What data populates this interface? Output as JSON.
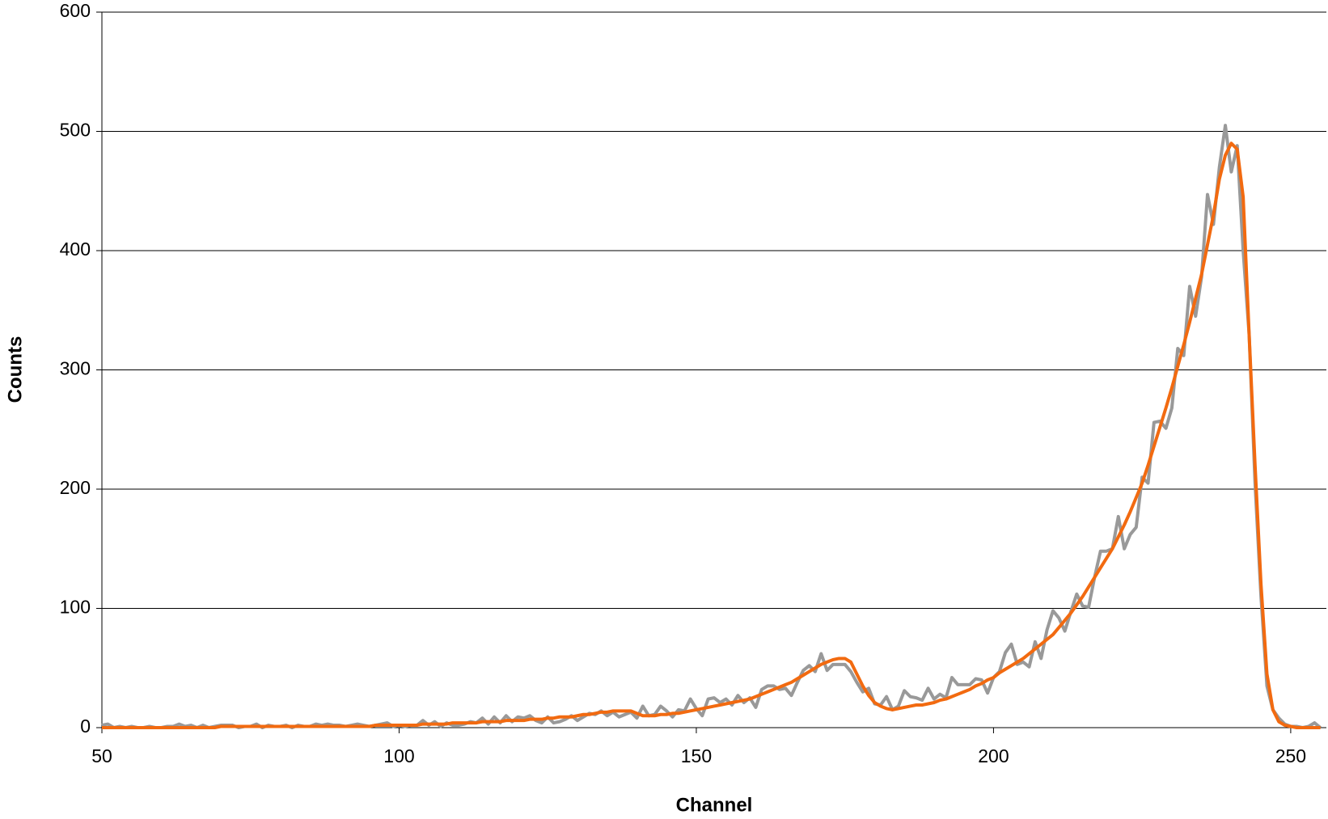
{
  "chart_data": {
    "type": "line",
    "x_label": "Channel",
    "y_label": "Counts",
    "x": [
      50,
      51,
      52,
      53,
      54,
      55,
      56,
      57,
      58,
      59,
      60,
      61,
      62,
      63,
      64,
      65,
      66,
      67,
      68,
      69,
      70,
      71,
      72,
      73,
      74,
      75,
      76,
      77,
      78,
      79,
      80,
      81,
      82,
      83,
      84,
      85,
      86,
      87,
      88,
      89,
      90,
      91,
      92,
      93,
      94,
      95,
      96,
      97,
      98,
      99,
      100,
      101,
      102,
      103,
      104,
      105,
      106,
      107,
      108,
      109,
      110,
      111,
      112,
      113,
      114,
      115,
      116,
      117,
      118,
      119,
      120,
      121,
      122,
      123,
      124,
      125,
      126,
      127,
      128,
      129,
      130,
      131,
      132,
      133,
      134,
      135,
      136,
      137,
      138,
      139,
      140,
      141,
      142,
      143,
      144,
      145,
      146,
      147,
      148,
      149,
      150,
      151,
      152,
      153,
      154,
      155,
      156,
      157,
      158,
      159,
      160,
      161,
      162,
      163,
      164,
      165,
      166,
      167,
      168,
      169,
      170,
      171,
      172,
      173,
      174,
      175,
      176,
      177,
      178,
      179,
      180,
      181,
      182,
      183,
      184,
      185,
      186,
      187,
      188,
      189,
      190,
      191,
      192,
      193,
      194,
      195,
      196,
      197,
      198,
      199,
      200,
      201,
      202,
      203,
      204,
      205,
      206,
      207,
      208,
      209,
      210,
      211,
      212,
      213,
      214,
      215,
      216,
      217,
      218,
      219,
      220,
      221,
      222,
      223,
      224,
      225,
      226,
      227,
      228,
      229,
      230,
      231,
      232,
      233,
      234,
      235,
      236,
      237,
      238,
      239,
      240,
      241,
      242,
      243,
      244,
      245,
      246,
      247,
      248,
      249,
      250,
      251,
      252,
      253,
      254,
      255
    ],
    "series": [
      {
        "color": "#999999",
        "values": [
          2,
          3,
          0,
          1,
          0,
          1,
          0,
          0,
          1,
          0,
          0,
          1,
          1,
          3,
          1,
          2,
          0,
          2,
          0,
          1,
          2,
          2,
          2,
          0,
          1,
          1,
          3,
          0,
          2,
          1,
          1,
          2,
          0,
          2,
          1,
          1,
          3,
          2,
          3,
          2,
          2,
          1,
          2,
          3,
          2,
          1,
          2,
          3,
          4,
          1,
          2,
          1,
          2,
          2,
          6,
          2,
          5,
          1,
          4,
          2,
          2,
          3,
          5,
          4,
          8,
          3,
          9,
          4,
          10,
          5,
          9,
          8,
          10,
          6,
          4,
          9,
          4,
          5,
          7,
          10,
          6,
          9,
          12,
          11,
          14,
          10,
          13,
          9,
          11,
          13,
          8,
          18,
          10,
          11,
          18,
          14,
          9,
          15,
          14,
          24,
          16,
          10,
          24,
          25,
          21,
          24,
          19,
          27,
          21,
          25,
          17,
          32,
          35,
          35,
          32,
          33,
          27,
          38,
          48,
          52,
          47,
          62,
          48,
          53,
          53,
          53,
          47,
          38,
          30,
          33,
          20,
          19,
          26,
          15,
          18,
          31,
          26,
          25,
          23,
          33,
          24,
          28,
          25,
          42,
          36,
          36,
          36,
          41,
          40,
          29,
          42,
          47,
          63,
          70,
          53,
          55,
          51,
          72,
          58,
          82,
          98,
          92,
          81,
          97,
          112,
          102,
          101,
          126,
          148,
          148,
          150,
          177,
          150,
          162,
          168,
          210,
          205,
          256,
          257,
          251,
          268,
          318,
          312,
          370,
          345,
          378,
          447,
          422,
          470,
          505,
          466,
          488,
          400,
          330,
          205,
          110,
          35,
          15,
          8,
          3,
          1,
          1,
          0,
          1,
          4,
          0
        ]
      },
      {
        "color": "#f26a10",
        "values": [
          0,
          0,
          0,
          0,
          0,
          0,
          0,
          0,
          0,
          0,
          0,
          0,
          0,
          0,
          0,
          0,
          0,
          0,
          0,
          0,
          1,
          1,
          1,
          1,
          1,
          1,
          1,
          1,
          1,
          1,
          1,
          1,
          1,
          1,
          1,
          1,
          1,
          1,
          1,
          1,
          1,
          1,
          1,
          1,
          1,
          1,
          2,
          2,
          2,
          2,
          2,
          2,
          2,
          2,
          3,
          3,
          3,
          3,
          3,
          4,
          4,
          4,
          4,
          4,
          5,
          5,
          5,
          5,
          6,
          6,
          6,
          6,
          7,
          7,
          7,
          8,
          8,
          9,
          9,
          9,
          10,
          11,
          11,
          12,
          13,
          13,
          14,
          14,
          14,
          14,
          12,
          10,
          10,
          10,
          11,
          11,
          12,
          12,
          13,
          14,
          15,
          16,
          17,
          18,
          19,
          20,
          21,
          22,
          23,
          24,
          26,
          28,
          30,
          32,
          34,
          36,
          38,
          41,
          44,
          47,
          50,
          53,
          55,
          57,
          58,
          58,
          55,
          45,
          35,
          27,
          21,
          18,
          16,
          15,
          16,
          17,
          18,
          19,
          19,
          20,
          21,
          23,
          24,
          26,
          28,
          30,
          32,
          35,
          37,
          40,
          42,
          46,
          49,
          52,
          55,
          58,
          62,
          66,
          70,
          74,
          78,
          84,
          90,
          96,
          103,
          110,
          118,
          126,
          134,
          142,
          150,
          160,
          170,
          181,
          193,
          205,
          220,
          236,
          252,
          268,
          285,
          303,
          321,
          340,
          360,
          380,
          405,
          430,
          460,
          480,
          490,
          485,
          445,
          330,
          220,
          120,
          45,
          15,
          5,
          2,
          1,
          0,
          0,
          0,
          0,
          0
        ]
      }
    ],
    "xlim": [
      50,
      256
    ],
    "xticks": [
      50,
      100,
      150,
      200,
      250
    ],
    "ylim": [
      0,
      600
    ],
    "yticks": [
      0,
      100,
      200,
      300,
      400,
      500,
      600
    ],
    "grid": true
  }
}
